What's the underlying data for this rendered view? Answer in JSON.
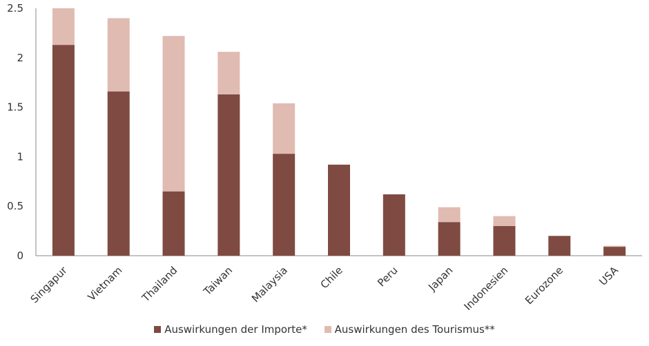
{
  "chart_data": {
    "type": "bar",
    "stacked": true,
    "title": "",
    "xlabel": "",
    "ylabel": "",
    "ylim": [
      0,
      2.5
    ],
    "yticks": [
      "0",
      "0.5",
      "1",
      "1.5",
      "2",
      "2.5"
    ],
    "categories": [
      "Singapur",
      "Vietnam",
      "Thailand",
      "Taiwan",
      "Malaysia",
      "Chile",
      "Peru",
      "Japan",
      "Indonesien",
      "Eurozone",
      "USA"
    ],
    "series": [
      {
        "name": "Auswirkungen der Importe*",
        "color": "#7f4a42",
        "values": [
          2.13,
          1.66,
          0.65,
          1.63,
          1.03,
          0.92,
          0.62,
          0.34,
          0.3,
          0.2,
          0.09
        ]
      },
      {
        "name": "Auswirkungen des Tourismus**",
        "color": "#e0bbb2",
        "values": [
          0.37,
          0.74,
          1.57,
          0.43,
          0.51,
          0,
          0,
          0.15,
          0.1,
          0,
          0.01
        ]
      }
    ],
    "legend": "bottom-center",
    "grid": false
  }
}
